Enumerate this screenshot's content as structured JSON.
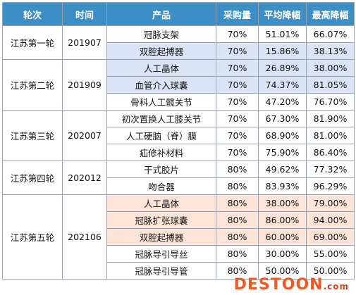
{
  "headers": [
    "轮次",
    "时间",
    "产品",
    "采购量",
    "平均降幅",
    "最高降幅"
  ],
  "groups": [
    {
      "round": "江苏第一轮",
      "period": "201907",
      "rows": [
        {
          "product": "冠脉支架",
          "volume": "70%",
          "avg": "51.01%",
          "max": "66.07%",
          "highlight": ""
        },
        {
          "product": "双腔起搏器",
          "volume": "70%",
          "avg": "15.86%",
          "max": "38.13%",
          "highlight": "blue"
        }
      ]
    },
    {
      "round": "江苏第二轮",
      "period": "201909",
      "rows": [
        {
          "product": "人工晶体",
          "volume": "70%",
          "avg": "26.89%",
          "max": "38.00%",
          "highlight": "blue"
        },
        {
          "product": "血管介入球囊",
          "volume": "70%",
          "avg": "74.37%",
          "max": "81.05%",
          "highlight": "blue"
        },
        {
          "product": "骨科人工髋关节",
          "volume": "70%",
          "avg": "47.20%",
          "max": "76.70%",
          "highlight": ""
        }
      ]
    },
    {
      "round": "江苏第三轮",
      "period": "202007",
      "rows": [
        {
          "product": "初次置换人工膝关节",
          "volume": "70%",
          "avg": "67.30%",
          "max": "81.90%",
          "highlight": ""
        },
        {
          "product": "人工硬脑（脊）膜",
          "volume": "70%",
          "avg": "68.90%",
          "max": "81.00%",
          "highlight": ""
        },
        {
          "product": "疝修补材料",
          "volume": "70%",
          "avg": "75.90%",
          "max": "86.40%",
          "highlight": ""
        }
      ]
    },
    {
      "round": "江苏第四轮",
      "period": "202012",
      "rows": [
        {
          "product": "干式胶片",
          "volume": "80%",
          "avg": "49.62%",
          "max": "77.32%",
          "highlight": ""
        },
        {
          "product": "吻合器",
          "volume": "80%",
          "avg": "83.93%",
          "max": "96.29%",
          "highlight": ""
        }
      ]
    },
    {
      "round": "江苏第五轮",
      "period": "202106",
      "rows": [
        {
          "product": "人工晶体",
          "volume": "80%",
          "avg": "38.00%",
          "max": "79.00%",
          "highlight": "peach"
        },
        {
          "product": "冠脉扩张球囊",
          "volume": "80%",
          "avg": "86.00%",
          "max": "94.00%",
          "highlight": "peach"
        },
        {
          "product": "双腔起搏器",
          "volume": "80%",
          "avg": "60.00%",
          "max": "69.00%",
          "highlight": "peach"
        },
        {
          "product": "冠脉导引导丝",
          "volume": "80%",
          "avg": "30.00%",
          "max": "55.00%",
          "highlight": ""
        },
        {
          "product": "冠脉导引导管",
          "volume": "80%",
          "avg": "50.00%",
          "max": "50.00%",
          "highlight": ""
        }
      ]
    }
  ],
  "watermark": {
    "text": "DESTOON",
    "suffix": ".com"
  },
  "colors": {
    "header_bg": "#3d8ec4",
    "highlight_blue": "#dbe3f7",
    "highlight_peach": "#fde4d6",
    "watermark": "#ef5a24"
  }
}
